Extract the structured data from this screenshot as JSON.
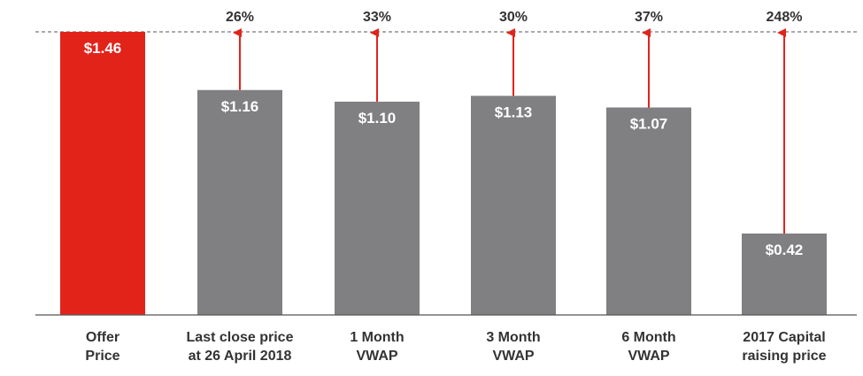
{
  "chart_data": {
    "type": "bar",
    "categories": [
      [
        "Offer",
        "Price"
      ],
      [
        "Last close price",
        "at 26 April 2018"
      ],
      [
        "1 Month",
        "VWAP"
      ],
      [
        "3 Month",
        "VWAP"
      ],
      [
        "6 Month",
        "VWAP"
      ],
      [
        "2017 Capital",
        "raising price"
      ]
    ],
    "values": [
      1.46,
      1.16,
      1.1,
      1.13,
      1.07,
      0.42
    ],
    "value_labels": [
      "$1.46",
      "$1.16",
      "$1.10",
      "$1.13",
      "$1.07",
      "$0.42"
    ],
    "premiums": [
      "",
      "26%",
      "33%",
      "30%",
      "37%",
      "248%"
    ],
    "reference_value": 1.46,
    "ylim": [
      0,
      1.46
    ],
    "grid": false,
    "colors": {
      "highlight": "#e2231a",
      "bar": "#808083",
      "arrow": "#e2231a",
      "axis": "#555555",
      "reference_line": "#555555"
    }
  }
}
